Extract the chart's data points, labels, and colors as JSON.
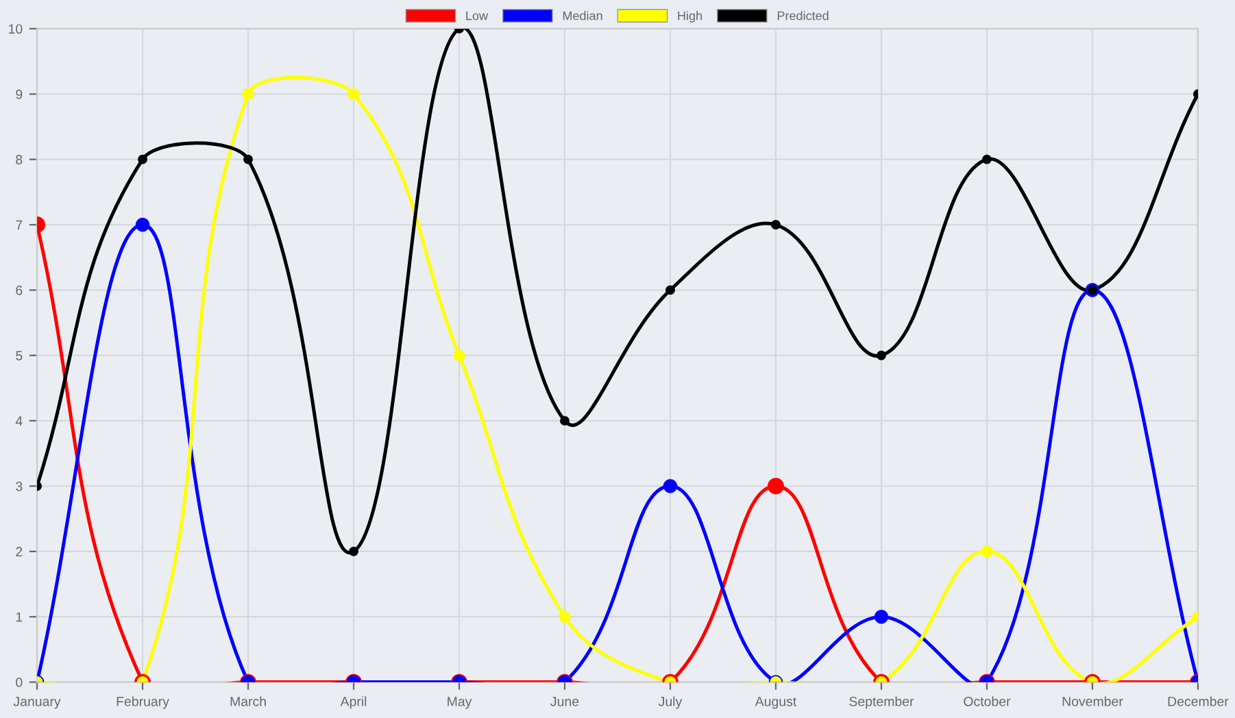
{
  "chart_data": {
    "type": "line",
    "categories": [
      "January",
      "February",
      "March",
      "April",
      "May",
      "June",
      "July",
      "August",
      "September",
      "October",
      "November",
      "December"
    ],
    "series": [
      {
        "name": "Low",
        "color": "#ff0000",
        "values": [
          7,
          0,
          0,
          0,
          0,
          0,
          0,
          3,
          0,
          0,
          0,
          0
        ]
      },
      {
        "name": "Median",
        "color": "#0000ff",
        "values": [
          0,
          7,
          0,
          0,
          0,
          0,
          3,
          0,
          1,
          0,
          6,
          0
        ]
      },
      {
        "name": "High",
        "color": "#ffff00",
        "values": [
          0,
          0,
          9,
          9,
          5,
          1,
          0,
          0,
          0,
          2,
          0,
          1
        ]
      },
      {
        "name": "Predicted",
        "color": "#000000",
        "values": [
          3,
          8,
          8,
          2,
          10,
          4,
          6,
          7,
          5,
          8,
          6,
          9
        ]
      }
    ],
    "ylim": [
      0,
      10
    ],
    "yticks": [
      0,
      1,
      2,
      3,
      4,
      5,
      6,
      7,
      8,
      9,
      10
    ],
    "grid": true,
    "legend": "top",
    "marker": "circle",
    "line_style": "solid"
  }
}
